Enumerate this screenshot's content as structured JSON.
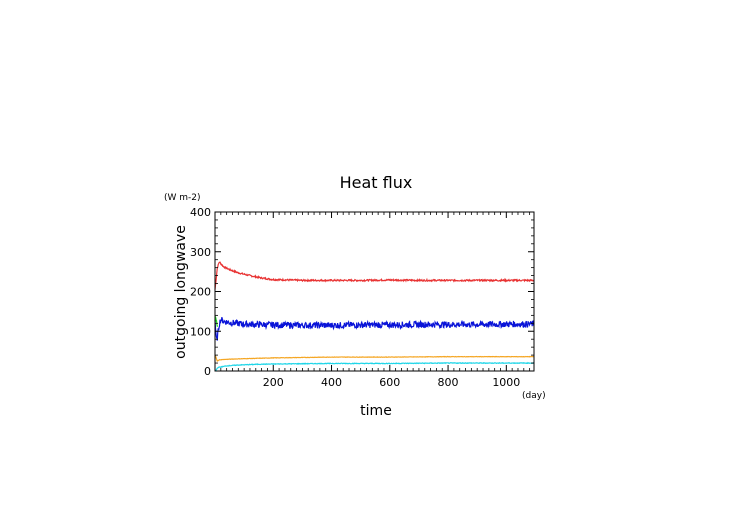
{
  "chart_data": {
    "type": "line",
    "title": "Heat flux",
    "xlabel": "time",
    "ylabel": "outgoing longwave",
    "xunit": "(day)",
    "yunit": "(W m-2)",
    "xlim": [
      0,
      1095
    ],
    "ylim": [
      0,
      400
    ],
    "x_ticks": [
      200,
      400,
      600,
      800,
      1000
    ],
    "y_ticks": [
      0,
      100,
      200,
      300,
      400
    ],
    "x_ticklabels": [
      "200",
      "400",
      "600",
      "800",
      "1000"
    ],
    "y_ticklabels": [
      "0",
      "100",
      "200",
      "300",
      "400"
    ],
    "grid": false,
    "legend": "none",
    "series": [
      {
        "color": "#e83232",
        "noise": 2,
        "x": [
          0,
          3,
          8,
          15,
          20,
          30,
          50,
          80,
          120,
          160,
          200,
          300,
          400,
          500,
          600,
          700,
          800,
          900,
          1000,
          1095
        ],
        "y": [
          205,
          225,
          260,
          275,
          270,
          262,
          255,
          247,
          240,
          234,
          230,
          228,
          228,
          228,
          229,
          228,
          228,
          228,
          228,
          228
        ]
      },
      {
        "color": "#0a14d8",
        "noise": 8,
        "x": [
          0,
          3,
          6,
          10,
          15,
          20,
          30,
          50,
          100,
          200,
          300,
          400,
          500,
          600,
          700,
          800,
          900,
          1000,
          1095
        ],
        "y": [
          130,
          90,
          75,
          95,
          120,
          130,
          125,
          122,
          118,
          116,
          115,
          115,
          116,
          116,
          117,
          117,
          117,
          118,
          118
        ]
      },
      {
        "color": "#22d822",
        "noise": 4,
        "x": [
          0,
          2,
          4,
          6,
          8
        ],
        "y": [
          125,
          132,
          128,
          120,
          110
        ]
      },
      {
        "color": "#f5a623",
        "noise": 0.5,
        "x": [
          0,
          3,
          8,
          15,
          30,
          60,
          100,
          200,
          300,
          400,
          600,
          800,
          1000,
          1095
        ],
        "y": [
          40,
          35,
          25,
          28,
          29,
          30,
          31,
          33,
          34,
          35,
          35,
          36,
          36,
          36
        ]
      },
      {
        "color": "#1ed6e8",
        "noise": 0.8,
        "x": [
          0,
          3,
          6,
          10,
          20,
          40,
          80,
          150,
          250,
          400,
          600,
          800,
          1000,
          1095
        ],
        "y": [
          2,
          1,
          5,
          9,
          10,
          13,
          15,
          17,
          18,
          19,
          19,
          20,
          20,
          20
        ]
      }
    ]
  }
}
